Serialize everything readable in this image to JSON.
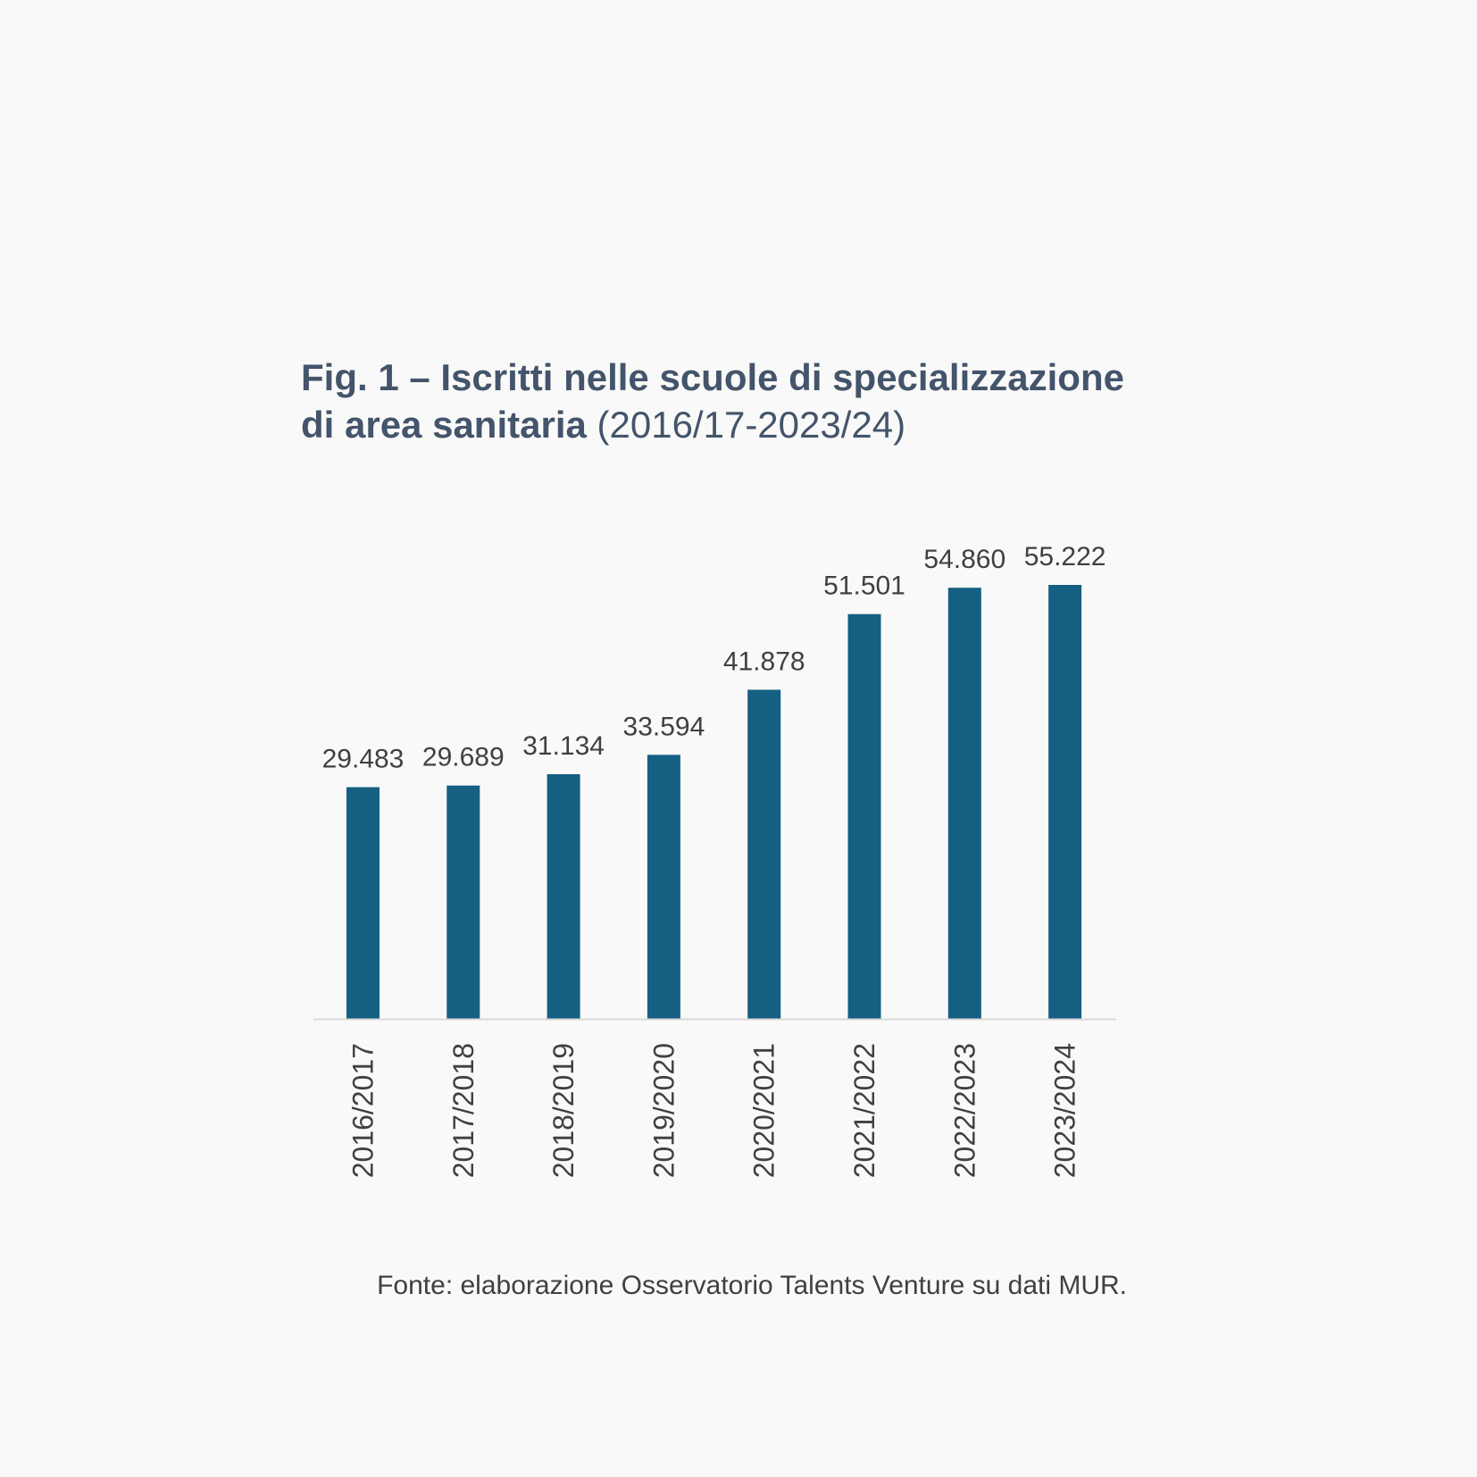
{
  "title": {
    "main": "Fig. 1 – Iscritti nelle scuole di specializzazione di area sanitaria",
    "range": "(2016/17-2023/24)"
  },
  "source": "Fonte: elaborazione Osservatorio Talents Venture su dati MUR.",
  "colors": {
    "bar": "#155f82",
    "axis": "#d9d9d9",
    "text": "#404040",
    "title": "#44546a"
  },
  "chart_data": {
    "type": "bar",
    "categories": [
      "2016/2017",
      "2017/2018",
      "2018/2019",
      "2019/2020",
      "2020/2021",
      "2021/2022",
      "2022/2023",
      "2023/2024"
    ],
    "values": [
      29483,
      29689,
      31134,
      33594,
      41878,
      51501,
      54860,
      55222
    ],
    "labels": [
      "29.483",
      "29.689",
      "31.134",
      "33.594",
      "41.878",
      "51.501",
      "54.860",
      "55.222"
    ],
    "ylim": [
      0,
      55222
    ],
    "grid": false,
    "legend": "none"
  }
}
